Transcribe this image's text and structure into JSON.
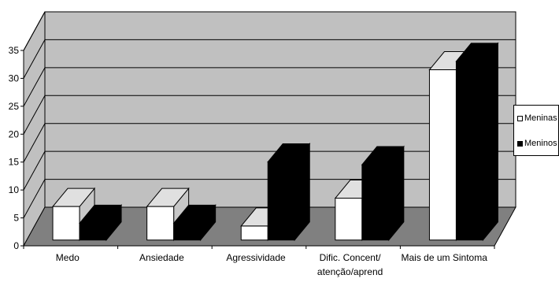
{
  "chart_data": {
    "type": "bar",
    "style": "3d-clustered-column",
    "categories": [
      "Medo",
      "Ansiedade",
      "Agressividade",
      "Dific. Concent/\natenção/aprend",
      "Mais de um Sintoma"
    ],
    "series": [
      {
        "name": "Meninas",
        "values": [
          6,
          6,
          2.5,
          7.5,
          30.5
        ],
        "color": "#ffffff"
      },
      {
        "name": "Meninos",
        "values": [
          3,
          3,
          14,
          13.5,
          32
        ],
        "color": "#000000"
      }
    ],
    "y_ticks": [
      "0",
      "5",
      "10",
      "15",
      "20",
      "25",
      "30",
      "35"
    ],
    "ylim": [
      0,
      35
    ],
    "grid": true,
    "legend_position": "right",
    "colors": {
      "wall": "#c0c0c0",
      "floor": "#808080",
      "outline": "#000000"
    }
  }
}
